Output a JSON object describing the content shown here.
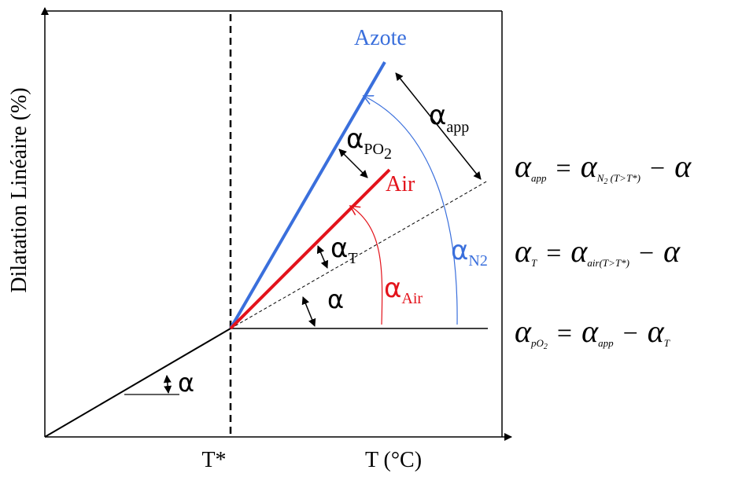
{
  "axes": {
    "y_label": "Dilatation Linéaire (%)",
    "x_label": "T (°C)",
    "t_star": "T*"
  },
  "curves": {
    "nitrogen": {
      "label": "Azote",
      "color": "#3a6fdc"
    },
    "air": {
      "label": "Air",
      "color": "#e3131b"
    },
    "reference": {
      "color": "#000000"
    }
  },
  "angle_labels": {
    "alpha": "α",
    "alpha_app": {
      "symbol": "α",
      "sub": "app"
    },
    "alpha_po2": {
      "symbol": "α",
      "sub": "PO",
      "subsub": "2"
    },
    "alpha_t": {
      "symbol": "α",
      "sub": "T"
    },
    "alpha_air": {
      "symbol": "α",
      "sub": "Air"
    },
    "alpha_n2": {
      "symbol": "α",
      "sub": "N2"
    }
  },
  "equations": [
    {
      "lhs": "α",
      "lhs_sub": "app",
      "rhs1": "α",
      "rhs1_sub": "N",
      "rhs1_subsub": "2",
      "rhs1_cond": "(T>T*)",
      "minus": "α"
    },
    {
      "lhs": "α",
      "lhs_sub": "T",
      "rhs1": "α",
      "rhs1_sub": "air",
      "rhs1_cond": "(T>T*)",
      "minus": "α"
    },
    {
      "lhs": "α",
      "lhs_sub": "pO",
      "lhs_subsub": "2",
      "rhs1": "α",
      "rhs1_sub": "app",
      "minus": "α",
      "minus_sub": "T"
    }
  ],
  "operators": {
    "equals": "=",
    "minus": "−"
  }
}
